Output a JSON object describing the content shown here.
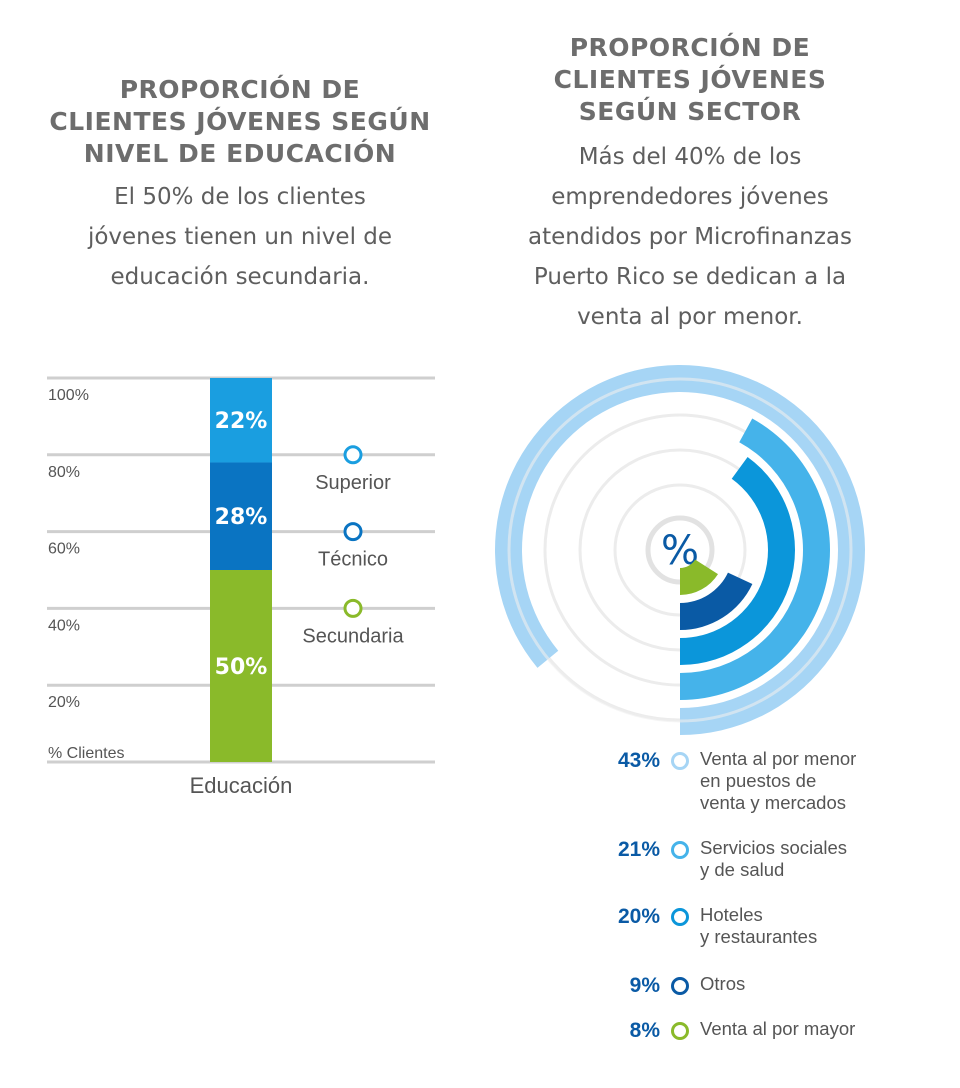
{
  "left": {
    "title": "PROPORCIÓN DE\nCLIENTES JÓVENES SEGÚN\nNIVEL DE EDUCACIÓN",
    "subtitle": "El 50% de los clientes\njóvenes tienen un nivel de\neducación secundaria."
  },
  "right": {
    "title": "PROPORCIÓN DE\nCLIENTES JÓVENES\nSEGÚN SECTOR",
    "subtitle": "Más del 40% de los\nemprendedores jóvenes\natendidos por Microfinanzas\nPuerto Rico se dedican a la\nventa al por menor.",
    "center_symbol": "%"
  },
  "chart_data": [
    {
      "type": "bar",
      "stacked": true,
      "categories": [
        "Educación"
      ],
      "ylabel": "% Clientes",
      "ylim": [
        0,
        100
      ],
      "yticks": [
        "20%",
        "40%",
        "60%",
        "80%",
        "100%"
      ],
      "series": [
        {
          "name": "Secundaria",
          "values": [
            50
          ],
          "label": "50%",
          "color": "#8aba2a"
        },
        {
          "name": "Técnico",
          "values": [
            28
          ],
          "label": "28%",
          "color": "#0a74c2"
        },
        {
          "name": "Superior",
          "values": [
            22
          ],
          "label": "22%",
          "color": "#1a9ee0"
        }
      ],
      "grid": true,
      "legend_placement": "right"
    },
    {
      "type": "radial-bar",
      "series": [
        {
          "name": "Venta al por menor\nen puestos de\nventa y mercados",
          "value": 43,
          "label": "43%",
          "color": "#a6d5f5"
        },
        {
          "name": "Servicios sociales\ny de salud",
          "value": 21,
          "label": "21%",
          "color": "#45b3ea"
        },
        {
          "name": "Hoteles\ny restaurantes",
          "value": 20,
          "label": "20%",
          "color": "#0b96da"
        },
        {
          "name": "Otros",
          "value": 9,
          "label": "9%",
          "color": "#0a5aa5"
        },
        {
          "name": "Venta al por mayor",
          "value": 8,
          "label": "8%",
          "color": "#8aba2a"
        }
      ],
      "legend_placement": "bottom-right"
    }
  ]
}
